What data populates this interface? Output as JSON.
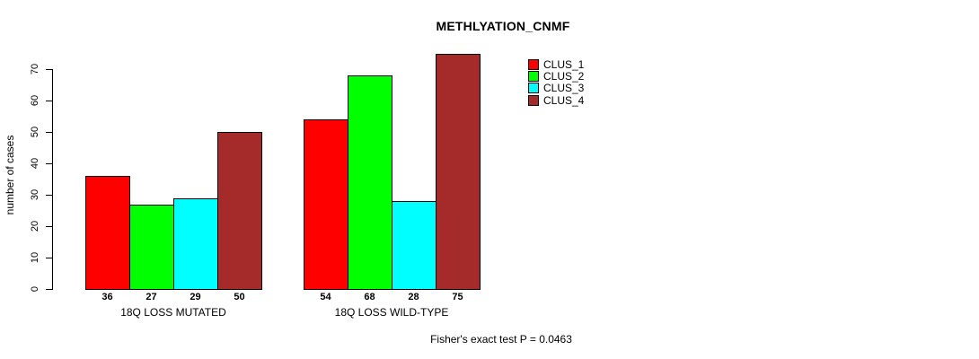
{
  "chart_data": {
    "type": "bar",
    "title": "METHLYATION_CNMF",
    "xlabel": "",
    "ylabel": "number of cases",
    "categories": [
      "18Q LOSS MUTATED",
      "18Q LOSS WILD-TYPE"
    ],
    "series": [
      {
        "name": "CLUS_1",
        "color": "#FF0000",
        "values": [
          36,
          54
        ]
      },
      {
        "name": "CLUS_2",
        "color": "#00FF00",
        "values": [
          27,
          68
        ]
      },
      {
        "name": "CLUS_3",
        "color": "#00FFFF",
        "values": [
          29,
          28
        ]
      },
      {
        "name": "CLUS_4",
        "color": "#A52A2A",
        "values": [
          50,
          75
        ]
      }
    ],
    "ylim": [
      0,
      70
    ],
    "yticks": [
      0,
      10,
      20,
      30,
      40,
      50,
      60,
      70
    ],
    "grid": false,
    "legend_position": "top-right",
    "legend_entries": [
      "CLUS_1",
      "CLUS_2",
      "CLUS_3",
      "CLUS_4"
    ],
    "bar_value_labels": true,
    "annotation": "Fisher's exact test P = 0.0463",
    "axis_color": "#000000",
    "bar_border_color": "#000000"
  }
}
